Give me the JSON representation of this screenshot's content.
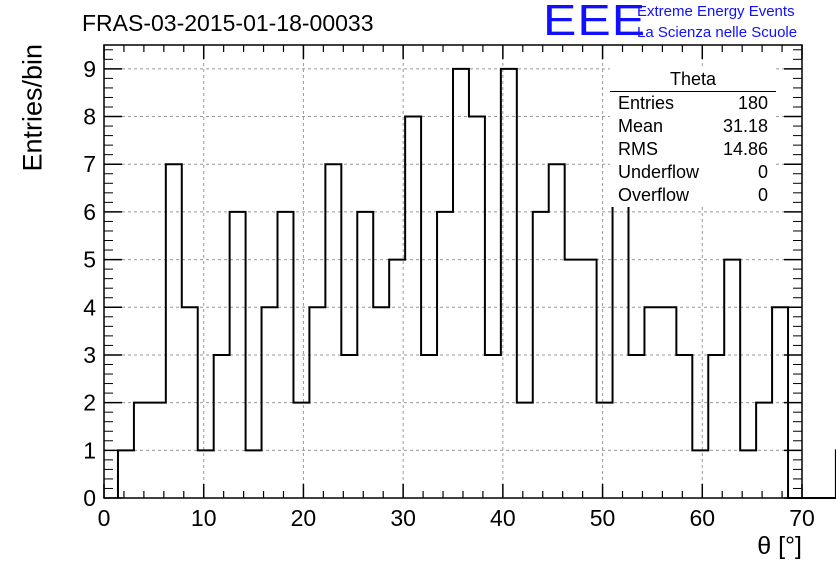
{
  "title": "FRAS-03-2015-01-18-00033",
  "logo": {
    "mark": "EEE",
    "line1": "Extreme Energy Events",
    "line2": "La Scienza nelle Scuole",
    "color": "#1010ff"
  },
  "stats": {
    "title": "Theta",
    "rows": [
      {
        "label": "Entries",
        "value": "180"
      },
      {
        "label": "Mean",
        "value": "31.18"
      },
      {
        "label": "RMS",
        "value": "14.86"
      },
      {
        "label": "Underflow",
        "value": "0"
      },
      {
        "label": "Overflow",
        "value": "0"
      }
    ]
  },
  "chart_data": {
    "type": "histogram",
    "title": "FRAS-03-2015-01-18-00033",
    "xlabel": "θ [°]",
    "ylabel": "Entries/bin",
    "xlim": [
      0,
      70
    ],
    "ylim": [
      0,
      9.5
    ],
    "bin_width": 1.6,
    "x_start": 1.4,
    "bin_values": [
      1,
      2,
      2,
      7,
      4,
      1,
      3,
      6,
      1,
      4,
      6,
      2,
      4,
      7,
      3,
      6,
      4,
      5,
      8,
      3,
      6,
      9,
      8,
      3,
      9,
      2,
      6,
      7,
      5,
      5,
      2,
      8,
      3,
      4,
      4,
      3,
      1,
      3,
      5,
      1,
      2,
      4,
      0,
      0,
      0,
      1
    ],
    "x_ticks": [
      0,
      10,
      20,
      30,
      40,
      50,
      60,
      70
    ],
    "y_ticks": [
      0,
      1,
      2,
      3,
      4,
      5,
      6,
      7,
      8,
      9
    ],
    "grid": true,
    "line_color": "#000000"
  }
}
